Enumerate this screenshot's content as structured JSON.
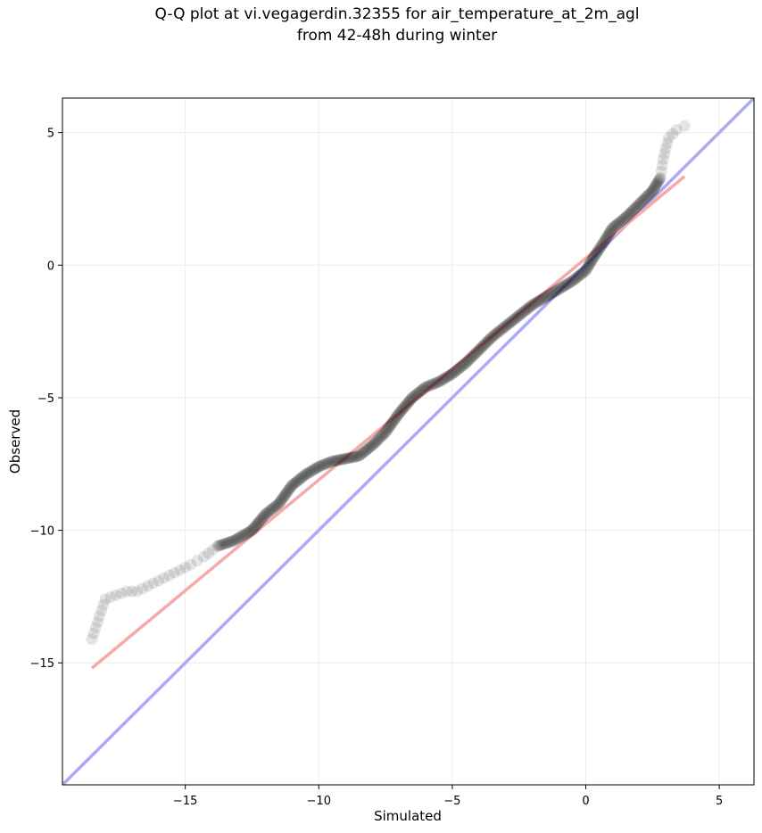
{
  "chart_data": {
    "type": "scatter",
    "title_line1": "Q-Q plot at vi.vegagerdin.32355 for air_temperature_at_2m_agl",
    "title_line2": "from 42-48h during winter",
    "xlabel": "Simulated",
    "ylabel": "Observed",
    "xlim": [
      -19.6,
      6.3
    ],
    "ylim": [
      -19.6,
      6.3
    ],
    "xticks": [
      -15,
      -10,
      -5,
      0,
      5
    ],
    "yticks": [
      -15,
      -10,
      -5,
      0,
      5
    ],
    "xtick_labels": [
      "−15",
      "−10",
      "−5",
      "0",
      "5"
    ],
    "ytick_labels": [
      "−15",
      "−10",
      "−5",
      "0",
      "5"
    ],
    "grid": true,
    "reference_line": {
      "from": [
        -19.6,
        -19.6
      ],
      "to": [
        6.3,
        6.3
      ],
      "color": "#aaaaf5"
    },
    "fit_line": {
      "from": [
        -18.5,
        -15.2
      ],
      "to": [
        3.7,
        3.35
      ],
      "color": "#f5aaaa"
    },
    "quantile_curve": [
      [
        -18.5,
        -14.1
      ],
      [
        -18.0,
        -12.6
      ],
      [
        -17.2,
        -12.3
      ],
      [
        -16.8,
        -12.3
      ],
      [
        -16.0,
        -11.9
      ],
      [
        -15.2,
        -11.5
      ],
      [
        -14.8,
        -11.3
      ],
      [
        -14.3,
        -11.0
      ],
      [
        -13.8,
        -10.6
      ],
      [
        -13.2,
        -10.4
      ],
      [
        -12.5,
        -10.0
      ],
      [
        -12.0,
        -9.4
      ],
      [
        -11.5,
        -9.0
      ],
      [
        -11.0,
        -8.3
      ],
      [
        -10.5,
        -7.9
      ],
      [
        -10.0,
        -7.6
      ],
      [
        -9.5,
        -7.4
      ],
      [
        -9.0,
        -7.3
      ],
      [
        -8.5,
        -7.2
      ],
      [
        -8.0,
        -6.8
      ],
      [
        -7.5,
        -6.3
      ],
      [
        -7.0,
        -5.6
      ],
      [
        -6.5,
        -5.0
      ],
      [
        -6.0,
        -4.6
      ],
      [
        -5.5,
        -4.4
      ],
      [
        -5.0,
        -4.1
      ],
      [
        -4.5,
        -3.7
      ],
      [
        -4.0,
        -3.2
      ],
      [
        -3.5,
        -2.7
      ],
      [
        -3.0,
        -2.3
      ],
      [
        -2.5,
        -1.9
      ],
      [
        -2.0,
        -1.5
      ],
      [
        -1.5,
        -1.2
      ],
      [
        -1.0,
        -0.9
      ],
      [
        -0.5,
        -0.6
      ],
      [
        0.0,
        -0.2
      ],
      [
        0.3,
        0.3
      ],
      [
        0.7,
        0.9
      ],
      [
        1.0,
        1.4
      ],
      [
        1.5,
        1.8
      ],
      [
        2.0,
        2.3
      ],
      [
        2.5,
        2.8
      ],
      [
        2.8,
        3.3
      ],
      [
        2.9,
        4.0
      ],
      [
        3.1,
        4.8
      ],
      [
        3.4,
        5.1
      ],
      [
        3.7,
        5.25
      ]
    ],
    "marker_color": "#000000"
  }
}
